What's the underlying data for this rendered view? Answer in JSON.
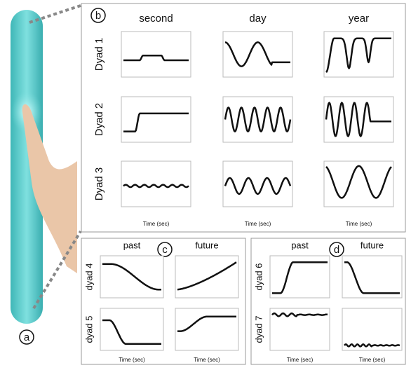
{
  "panels": {
    "a": {
      "label": "a"
    },
    "b": {
      "label": "b",
      "columns": [
        "second",
        "day",
        "year"
      ],
      "rows": [
        "Dyad 1",
        "Dyad 2",
        "Dyad 3"
      ],
      "x_label": "Time (sec)"
    },
    "c": {
      "label": "c",
      "columns": [
        "past",
        "future"
      ],
      "rows": [
        "dyad 4",
        "dyad 5"
      ],
      "x_label": "Time (sec)"
    },
    "d": {
      "label": "d",
      "columns": [
        "past",
        "future"
      ],
      "rows": [
        "dyad 6",
        "dyad 7"
      ],
      "x_label": "Time (sec)"
    }
  }
}
